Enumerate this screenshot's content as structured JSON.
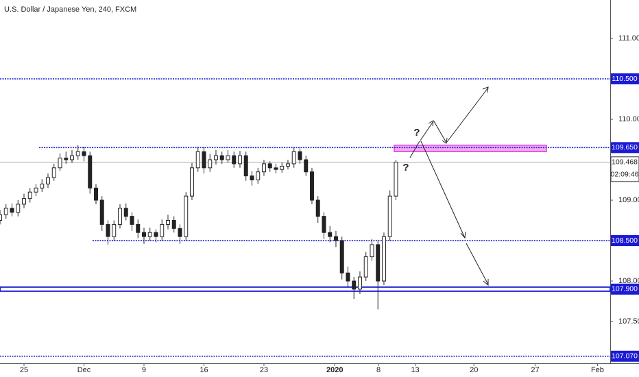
{
  "chart_data": {
    "type": "candlestick",
    "title": "U.S. Dollar / Japanese Yen, 240, FXCM",
    "x": [
      -2,
      -1.5,
      -1,
      -0.5,
      0,
      0.5,
      1,
      1.5,
      2,
      2.5,
      3,
      3.5,
      4,
      4.5,
      5,
      5.5,
      6,
      6.5,
      7,
      7.5,
      8,
      8.5,
      9,
      9.5,
      10,
      10.5,
      11,
      11.5,
      12,
      12.5,
      13,
      13.5,
      14,
      14.5,
      15,
      15.5,
      16,
      16.5,
      17,
      17.5,
      18,
      18.5,
      19,
      19.5,
      20,
      20.5,
      21,
      21.5,
      22,
      22.5,
      23,
      23.5,
      24,
      24.5,
      25,
      25.5,
      26,
      26.5,
      27,
      27.5,
      28,
      28.5,
      29,
      29.5,
      30,
      30.5,
      31
    ],
    "open": [
      108.75,
      108.82,
      108.9,
      108.85,
      108.95,
      109.02,
      109.1,
      109.15,
      109.2,
      109.28,
      109.4,
      109.52,
      109.5,
      109.55,
      109.6,
      109.55,
      109.15,
      109.0,
      108.7,
      108.55,
      108.7,
      108.9,
      108.8,
      108.7,
      108.6,
      108.55,
      108.6,
      108.55,
      108.7,
      108.75,
      108.65,
      108.55,
      109.05,
      109.4,
      109.6,
      109.4,
      109.5,
      109.55,
      109.5,
      109.55,
      109.45,
      109.55,
      109.3,
      109.25,
      109.35,
      109.45,
      109.4,
      109.38,
      109.42,
      109.45,
      109.6,
      109.5,
      109.35,
      109.0,
      108.8,
      108.6,
      108.55,
      108.5,
      108.1,
      108.0,
      107.9,
      108.05,
      108.3,
      108.45,
      108.0,
      108.55,
      109.05
    ],
    "high": [
      108.88,
      108.95,
      108.96,
      109.0,
      109.08,
      109.15,
      109.2,
      109.26,
      109.33,
      109.45,
      109.58,
      109.6,
      109.62,
      109.68,
      109.66,
      109.6,
      109.2,
      109.05,
      108.75,
      108.75,
      108.95,
      108.96,
      108.85,
      108.76,
      108.66,
      108.66,
      108.64,
      108.76,
      108.82,
      108.8,
      108.7,
      109.1,
      109.46,
      109.66,
      109.65,
      109.57,
      109.62,
      109.6,
      109.62,
      109.6,
      109.61,
      109.6,
      109.36,
      109.4,
      109.5,
      109.48,
      109.45,
      109.47,
      109.5,
      109.65,
      109.64,
      109.55,
      109.4,
      109.05,
      108.85,
      108.68,
      108.62,
      108.55,
      108.18,
      108.05,
      108.12,
      108.36,
      108.52,
      108.5,
      108.6,
      109.12,
      109.5
    ],
    "low": [
      108.7,
      108.77,
      108.8,
      108.8,
      108.9,
      108.97,
      109.05,
      109.1,
      109.15,
      109.24,
      109.36,
      109.45,
      109.46,
      109.5,
      109.48,
      109.08,
      108.95,
      108.62,
      108.45,
      108.5,
      108.65,
      108.75,
      108.62,
      108.53,
      108.46,
      108.5,
      108.48,
      108.5,
      108.64,
      108.6,
      108.46,
      108.5,
      109.0,
      109.35,
      109.33,
      109.35,
      109.44,
      109.45,
      109.46,
      109.4,
      109.4,
      109.24,
      109.18,
      109.2,
      109.3,
      109.35,
      109.33,
      109.34,
      109.38,
      109.4,
      109.45,
      109.3,
      108.95,
      108.72,
      108.52,
      108.48,
      108.42,
      108.02,
      107.92,
      107.78,
      107.84,
      108.0,
      108.25,
      107.65,
      107.95,
      108.5,
      109.0
    ],
    "close": [
      108.82,
      108.9,
      108.85,
      108.95,
      109.02,
      109.1,
      109.15,
      109.2,
      109.28,
      109.4,
      109.52,
      109.5,
      109.55,
      109.6,
      109.55,
      109.15,
      109.0,
      108.7,
      108.55,
      108.7,
      108.9,
      108.8,
      108.7,
      108.6,
      108.55,
      108.6,
      108.55,
      108.7,
      108.75,
      108.65,
      108.55,
      109.05,
      109.4,
      109.6,
      109.4,
      109.5,
      109.55,
      109.5,
      109.55,
      109.45,
      109.55,
      109.3,
      109.25,
      109.35,
      109.45,
      109.4,
      109.38,
      109.42,
      109.45,
      109.6,
      109.5,
      109.35,
      109.0,
      108.8,
      108.6,
      108.55,
      108.5,
      108.1,
      108.0,
      107.9,
      108.05,
      108.3,
      108.45,
      108.0,
      108.55,
      109.05,
      109.47
    ],
    "xlim": [
      -2,
      48.86
    ],
    "xticks": [
      {
        "value": 0,
        "label": "25"
      },
      {
        "value": 5,
        "label": "Dec"
      },
      {
        "value": 10,
        "label": "9"
      },
      {
        "value": 15,
        "label": "16"
      },
      {
        "value": 20,
        "label": "23"
      },
      {
        "value": 25.9,
        "label": "2020"
      },
      {
        "value": 29.55,
        "label": "8"
      },
      {
        "value": 32.6,
        "label": "13"
      },
      {
        "value": 37.5,
        "label": "20"
      },
      {
        "value": 42.6,
        "label": "27"
      },
      {
        "value": 47.8,
        "label": "Feb"
      }
    ],
    "ylim": [
      106.983,
      111.475
    ],
    "yticks": [
      {
        "value": 111,
        "label": "111.000"
      },
      {
        "value": 110,
        "label": "110.000"
      },
      {
        "value": 109,
        "label": "109.000"
      },
      {
        "value": 108,
        "label": "108.000"
      },
      {
        "value": 107.5,
        "label": "107.500"
      }
    ],
    "levels": [
      {
        "value": 110.5,
        "label": "110.500"
      },
      {
        "value": 109.65,
        "label": "109.650",
        "from": 1.26
      },
      {
        "value": 108.5,
        "label": "108.500",
        "from": 5.71
      },
      {
        "value": 107.9,
        "label": "107.900",
        "thick": true
      },
      {
        "value": 107.07,
        "label": "107.070"
      }
    ],
    "level_color": "#1b1bd6",
    "zone": {
      "low": 109.6,
      "high": 109.68,
      "from": 30.86,
      "to": 43.54,
      "color": "#e040e0"
    },
    "last_price": {
      "value": 109.468,
      "label": "109.468",
      "countdown": "02:09:46"
    },
    "annotations": [
      "?",
      "?"
    ]
  }
}
